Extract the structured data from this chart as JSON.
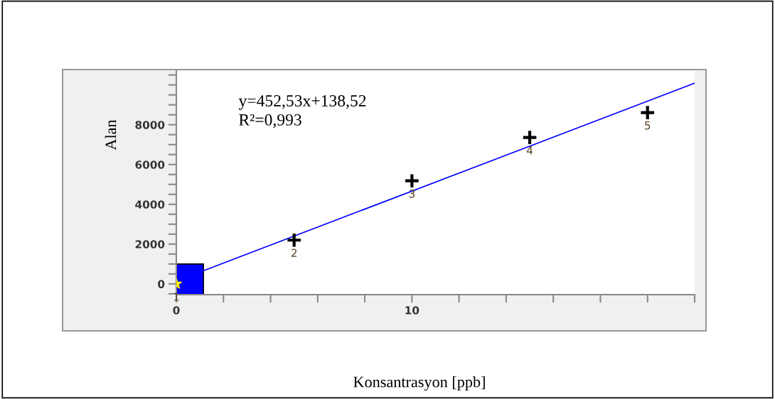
{
  "chart_data": {
    "type": "scatter",
    "xlabel": "Konsantrasyon [ppb]",
    "ylabel": "Alan",
    "xlim": [
      0,
      22
    ],
    "ylim": [
      -540,
      10700
    ],
    "xticks": [
      0,
      {
        "value": 2,
        "label": null
      },
      {
        "value": 4,
        "label": null
      },
      {
        "value": 6,
        "label": null
      },
      {
        "value": 8,
        "label": null
      },
      10,
      {
        "value": 12,
        "label": null
      },
      {
        "value": 14,
        "label": null
      },
      {
        "value": 16,
        "label": null
      },
      {
        "value": 18,
        "label": null
      },
      {
        "value": 20,
        "label": null
      },
      {
        "value": 22,
        "label": null
      }
    ],
    "yticks": [
      {
        "value": -500,
        "label": null
      },
      0,
      {
        "value": 500,
        "label": null
      },
      {
        "value": 1000,
        "label": null
      },
      {
        "value": 1500,
        "label": null
      },
      2000,
      {
        "value": 2500,
        "label": null
      },
      {
        "value": 3000,
        "label": null
      },
      {
        "value": 3500,
        "label": null
      },
      4000,
      {
        "value": 4500,
        "label": null
      },
      {
        "value": 5000,
        "label": null
      },
      {
        "value": 5500,
        "label": null
      },
      6000,
      {
        "value": 6500,
        "label": null
      },
      {
        "value": 7000,
        "label": null
      },
      {
        "value": 7500,
        "label": null
      },
      8000,
      {
        "value": 8500,
        "label": null
      },
      {
        "value": 9000,
        "label": null
      },
      {
        "value": 9500,
        "label": null
      },
      {
        "value": 10000,
        "label": null
      },
      {
        "value": 10500,
        "label": null
      }
    ],
    "series": [
      {
        "color": "#ffee00",
        "marker": "star",
        "x": [
          0
        ],
        "values": [
          0
        ]
      },
      {
        "color": "#000000",
        "marker": "cross",
        "x": [
          5,
          10,
          15,
          20
        ],
        "values": [
          2200,
          5180,
          7360,
          8610
        ]
      },
      {
        "type": "line",
        "color": "#0000ff",
        "marker": "none",
        "line_style": "solid",
        "x": [
          0,
          22
        ],
        "values": [
          140,
          10090
        ]
      }
    ],
    "annotations": [
      "y=452,53x+138,52",
      "R²=0,993",
      {
        "text": "1",
        "x": 0,
        "y": 0
      },
      {
        "text": "2",
        "x": 5,
        "y": 2200
      },
      {
        "text": "3",
        "x": 10,
        "y": 5180
      },
      {
        "text": "4",
        "x": 15,
        "y": 7360
      },
      {
        "text": "5",
        "x": 20,
        "y": 8610
      }
    ],
    "grid": false,
    "legend": false
  }
}
